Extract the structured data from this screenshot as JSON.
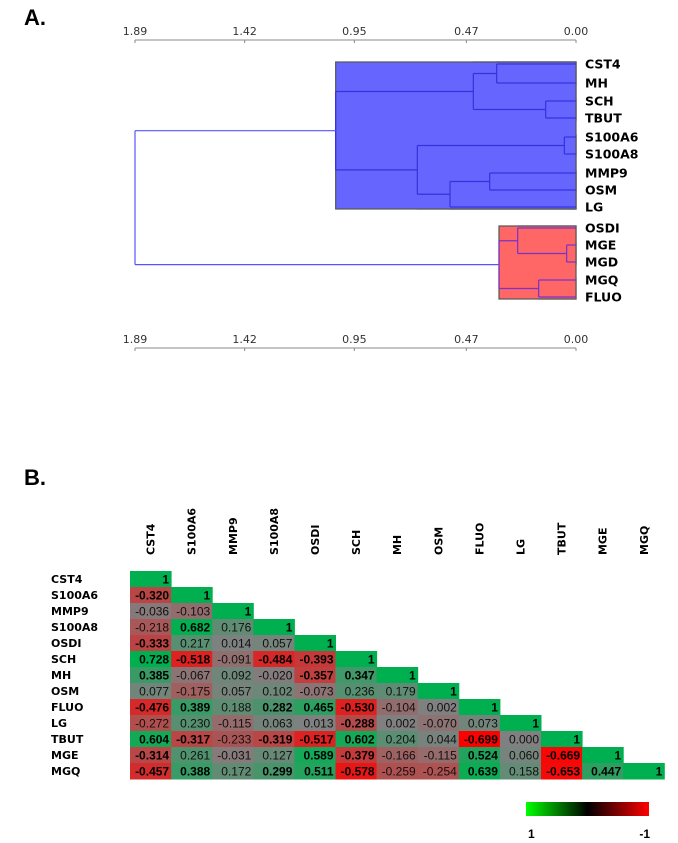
{
  "panels": {
    "a_label": "A.",
    "b_label": "B."
  },
  "chart_data": [
    {
      "type": "dendrogram",
      "title": "",
      "axis": {
        "ticks": [
          "1.89",
          "1.42",
          "0.95",
          "0.47",
          "0.00"
        ],
        "tick_values": [
          1.89,
          1.42,
          0.95,
          0.47,
          0.0
        ],
        "range": [
          1.89,
          0.0
        ],
        "positions": [
          "top",
          "bottom"
        ]
      },
      "leaves": [
        "CST4",
        "MH",
        "SCH",
        "TBUT",
        "S100A6",
        "S100A8",
        "MMP9",
        "OSM",
        "LG",
        "OSDI",
        "MGE",
        "MGD",
        "MGQ",
        "FLUO"
      ],
      "clusters": [
        {
          "name": "blue",
          "color": "#6666ff",
          "line_color": "#3333dd",
          "members": [
            "CST4",
            "MH",
            "SCH",
            "TBUT",
            "S100A6",
            "S100A8",
            "MMP9",
            "OSM",
            "LG"
          ],
          "height": 1.03
        },
        {
          "name": "red",
          "color": "#ff6666",
          "line_color": "#7733cc",
          "members": [
            "OSDI",
            "MGE",
            "MGD",
            "MGQ",
            "FLUO"
          ],
          "height": 0.33
        }
      ],
      "merges": [
        {
          "a": [
            "CST4"
          ],
          "b": [
            "MH"
          ],
          "height": 0.34
        },
        {
          "a": [
            "SCH"
          ],
          "b": [
            "TBUT"
          ],
          "height": 0.13
        },
        {
          "a": [
            "CST4",
            "MH"
          ],
          "b": [
            "SCH",
            "TBUT"
          ],
          "height": 0.44
        },
        {
          "a": [
            "S100A6"
          ],
          "b": [
            "S100A8"
          ],
          "height": 0.05
        },
        {
          "a": [
            "MMP9"
          ],
          "b": [
            "OSM"
          ],
          "height": 0.37
        },
        {
          "a": [
            "MMP9",
            "OSM"
          ],
          "b": [
            "LG"
          ],
          "height": 0.54
        },
        {
          "a": [
            "S100A6",
            "S100A8"
          ],
          "b": [
            "MMP9",
            "OSM",
            "LG"
          ],
          "height": 0.68
        },
        {
          "a": [
            "CST4",
            "MH",
            "SCH",
            "TBUT"
          ],
          "b": [
            "S100A6",
            "S100A8",
            "MMP9",
            "OSM",
            "LG"
          ],
          "height": 1.03
        },
        {
          "a": [
            "MGE"
          ],
          "b": [
            "MGD"
          ],
          "height": 0.04
        },
        {
          "a": [
            "OSDI"
          ],
          "b": [
            "MGE",
            "MGD"
          ],
          "height": 0.25
        },
        {
          "a": [
            "MGQ"
          ],
          "b": [
            "FLUO"
          ],
          "height": 0.16
        },
        {
          "a": [
            "OSDI",
            "MGE",
            "MGD"
          ],
          "b": [
            "MGQ",
            "FLUO"
          ],
          "height": 0.33
        },
        {
          "a": [
            "CST4",
            "MH",
            "SCH",
            "TBUT",
            "S100A6",
            "S100A8",
            "MMP9",
            "OSM",
            "LG"
          ],
          "b": [
            "OSDI",
            "MGE",
            "MGD",
            "MGQ",
            "FLUO"
          ],
          "height": 1.89
        }
      ]
    },
    {
      "type": "heatmap",
      "title": "",
      "variables": [
        "CST4",
        "S100A6",
        "MMP9",
        "S100A8",
        "OSDI",
        "SCH",
        "MH",
        "OSM",
        "FLUO",
        "LG",
        "TBUT",
        "MGE",
        "MGQ"
      ],
      "lower_triangle": [
        [
          "1"
        ],
        [
          "-0.320",
          "1"
        ],
        [
          "-0.036",
          "-0.103",
          "1"
        ],
        [
          "-0.218",
          "0.682",
          "0.176",
          "1"
        ],
        [
          "-0.333",
          "0.217",
          "0.014",
          "0.057",
          "1"
        ],
        [
          "0.728",
          "-0.518",
          "-0.091",
          "-0.484",
          "-0.393",
          "1"
        ],
        [
          "0.385",
          "-0.067",
          "0.092",
          "-0.020",
          "-0.357",
          "0.347",
          "1"
        ],
        [
          "0.077",
          "-0.175",
          "0.057",
          "0.102",
          "-0.073",
          "0.236",
          "0.179",
          "1"
        ],
        [
          "-0.476",
          "0.389",
          "0.188",
          "0.282",
          "0.465",
          "-0.530",
          "-0.104",
          "0.002",
          "1"
        ],
        [
          "-0.272",
          "0.230",
          "-0.115",
          "0.063",
          "0.013",
          "-0.288",
          "0.002",
          "-0.070",
          "0.073",
          "1"
        ],
        [
          "0.604",
          "-0.317",
          "-0.233",
          "-0.319",
          "-0.517",
          "0.602",
          "0.204",
          "0.044",
          "-0.699",
          "0.000",
          "1"
        ],
        [
          "-0.314",
          "0.261",
          "-0.031",
          "0.127",
          "0.589",
          "-0.379",
          "-0.166",
          "-0.115",
          "0.524",
          "0.060",
          "-0.669",
          "1"
        ],
        [
          "-0.457",
          "0.388",
          "0.172",
          "0.299",
          "0.511",
          "-0.578",
          "-0.259",
          "-0.254",
          "0.639",
          "0.158",
          "-0.653",
          "0.447",
          "1"
        ]
      ],
      "bold_threshold": 0.28,
      "colors": {
        "positive": "#00b050",
        "neutral": "#808080",
        "negative": "#ff0000"
      },
      "legend": {
        "min_label": "1",
        "max_label": "-1",
        "colors": [
          "#00ff00",
          "#000000",
          "#ff0000"
        ]
      }
    }
  ]
}
